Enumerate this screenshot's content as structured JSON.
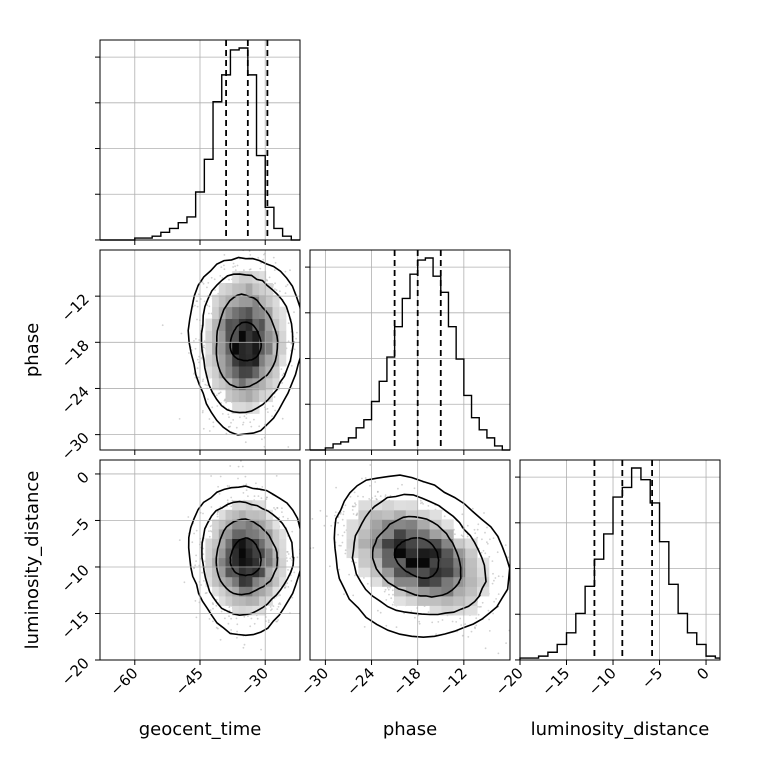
{
  "chart_data": {
    "type": "corner",
    "parameters": [
      "geocent_time",
      "phase",
      "luminosity_distance"
    ],
    "axis_labels": [
      "geocent_time",
      "phase",
      "luminosity_distance"
    ],
    "ranges": [
      [
        -68,
        -22
      ],
      [
        -32,
        -6
      ],
      [
        -20,
        1.5
      ]
    ],
    "ticks": [
      [
        -60,
        -45,
        -30
      ],
      [
        -30,
        -24,
        -18,
        -12
      ],
      [
        -20,
        -15,
        -10,
        -5,
        0
      ]
    ],
    "tick_labels": [
      [
        "−60",
        "−45",
        "−30"
      ],
      [
        "−30",
        "−24",
        "−18",
        "−12"
      ],
      [
        "−20",
        "−15",
        "−10",
        "−5",
        "0"
      ]
    ],
    "quantiles": [
      [
        -39,
        -34,
        -29.5
      ],
      [
        -21,
        -18,
        -15
      ],
      [
        -12,
        -9,
        -5.8
      ]
    ],
    "grid": true,
    "histograms": [
      {
        "parameter": "geocent_time",
        "bin_edges": [
          -68,
          -66,
          -64,
          -62,
          -60,
          -58,
          -56,
          -54,
          -52,
          -50,
          -48,
          -46,
          -44,
          -42,
          -40,
          -38,
          -36,
          -34,
          -32,
          -30,
          -28,
          -26,
          -24,
          -22
        ],
        "counts": [
          0,
          0,
          0,
          0,
          0.01,
          0.01,
          0.02,
          0.04,
          0.06,
          0.09,
          0.12,
          0.25,
          0.42,
          0.72,
          0.86,
          0.99,
          1.0,
          0.86,
          0.44,
          0.17,
          0.06,
          0.02,
          0
        ]
      },
      {
        "parameter": "phase",
        "bin_edges": [
          -32,
          -31,
          -30,
          -29,
          -28,
          -27,
          -26,
          -25,
          -24,
          -23,
          -22,
          -21,
          -20,
          -19,
          -18,
          -17,
          -16,
          -15,
          -14,
          -13,
          -12,
          -11,
          -10,
          -9,
          -8,
          -7,
          -6
        ],
        "counts": [
          0,
          0,
          0.01,
          0.03,
          0.04,
          0.06,
          0.11,
          0.15,
          0.24,
          0.34,
          0.46,
          0.61,
          0.75,
          0.87,
          0.94,
          0.95,
          0.86,
          0.78,
          0.61,
          0.45,
          0.27,
          0.16,
          0.1,
          0.06,
          0.02,
          0
        ]
      },
      {
        "parameter": "luminosity_distance",
        "bin_edges": [
          -20,
          -19,
          -18,
          -17,
          -16,
          -15,
          -14,
          -13,
          -12,
          -11,
          -10,
          -9,
          -8,
          -7,
          -6,
          -5,
          -4,
          -3,
          -2,
          -1,
          0,
          1,
          1.5
        ],
        "counts": [
          0.01,
          0.01,
          0.02,
          0.04,
          0.08,
          0.14,
          0.24,
          0.38,
          0.52,
          0.65,
          0.84,
          0.89,
          0.99,
          0.93,
          0.81,
          0.61,
          0.39,
          0.24,
          0.14,
          0.08,
          0.02,
          0.01
        ]
      }
    ],
    "joint_2d": [
      {
        "x": "geocent_time",
        "y": "phase",
        "center": [
          -34.5,
          -18
        ],
        "sigma": [
          4.5,
          4.5
        ],
        "rho": 0.0,
        "contour_half_widths": [
          [
            3.5,
            2.5
          ],
          [
            7,
            6
          ],
          [
            10.5,
            9
          ],
          [
            13,
            11.5
          ]
        ]
      },
      {
        "x": "geocent_time",
        "y": "luminosity_distance",
        "center": [
          -34.5,
          -9
        ],
        "sigma": [
          4.5,
          3.0
        ],
        "rho": 0.0,
        "contour_half_widths": [
          [
            3.5,
            2
          ],
          [
            7,
            4
          ],
          [
            10.5,
            6
          ],
          [
            13,
            8
          ]
        ]
      },
      {
        "x": "phase",
        "y": "luminosity_distance",
        "center": [
          -18,
          -9
        ],
        "sigma": [
          4.5,
          3.0
        ],
        "rho": -0.45,
        "contour_half_widths": [
          [
            3,
            2
          ],
          [
            6,
            4
          ],
          [
            9,
            6
          ],
          [
            12,
            8
          ]
        ]
      }
    ]
  }
}
